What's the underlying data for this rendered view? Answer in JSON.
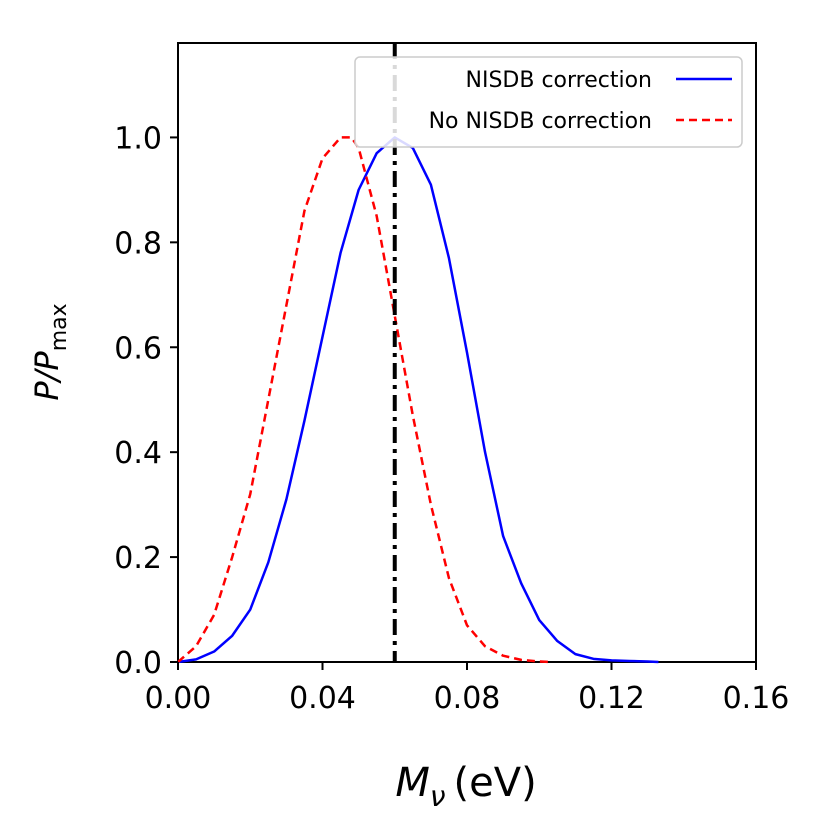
{
  "chart_data": {
    "type": "line",
    "xlabel": {
      "symbol": "M",
      "subscript": "ν",
      "unit": "(eV)"
    },
    "ylabel": {
      "base": "P/P",
      "subscript": "max"
    },
    "xlim": [
      0.0,
      0.16
    ],
    "ylim": [
      0.0,
      1.18
    ],
    "xticks": [
      0.0,
      0.04,
      0.08,
      0.12,
      0.16
    ],
    "xtick_labels": [
      "0.00",
      "0.04",
      "0.08",
      "0.12",
      "0.16"
    ],
    "yticks": [
      0.0,
      0.2,
      0.4,
      0.6,
      0.8,
      1.0
    ],
    "ytick_labels": [
      "0.0",
      "0.2",
      "0.4",
      "0.6",
      "0.8",
      "1.0"
    ],
    "grid": false,
    "legend_position": "top-right",
    "series": [
      {
        "name": "NISDB correction",
        "color": "#0000ff",
        "style": "solid",
        "x": [
          0.0,
          0.005,
          0.01,
          0.015,
          0.02,
          0.025,
          0.03,
          0.035,
          0.04,
          0.045,
          0.05,
          0.055,
          0.06,
          0.065,
          0.07,
          0.075,
          0.08,
          0.085,
          0.09,
          0.095,
          0.1,
          0.105,
          0.11,
          0.115,
          0.12,
          0.125,
          0.13,
          0.133
        ],
        "y": [
          0.0,
          0.005,
          0.02,
          0.05,
          0.1,
          0.19,
          0.31,
          0.46,
          0.62,
          0.78,
          0.9,
          0.97,
          1.0,
          0.98,
          0.91,
          0.77,
          0.59,
          0.4,
          0.24,
          0.15,
          0.08,
          0.04,
          0.015,
          0.006,
          0.003,
          0.002,
          0.001,
          0.0
        ]
      },
      {
        "name": "No NISDB correction",
        "color": "#ff0000",
        "style": "dashed",
        "x": [
          0.0,
          0.005,
          0.01,
          0.015,
          0.02,
          0.025,
          0.03,
          0.035,
          0.04,
          0.045,
          0.048,
          0.05,
          0.055,
          0.06,
          0.065,
          0.07,
          0.075,
          0.08,
          0.085,
          0.09,
          0.095,
          0.1,
          0.103
        ],
        "y": [
          0.0,
          0.03,
          0.09,
          0.2,
          0.32,
          0.5,
          0.68,
          0.86,
          0.96,
          1.0,
          1.0,
          0.98,
          0.85,
          0.66,
          0.47,
          0.3,
          0.16,
          0.07,
          0.03,
          0.012,
          0.004,
          0.001,
          0.0
        ]
      }
    ],
    "vlines": [
      {
        "x": 0.06,
        "color": "#000000",
        "style": "dashdot"
      }
    ]
  }
}
